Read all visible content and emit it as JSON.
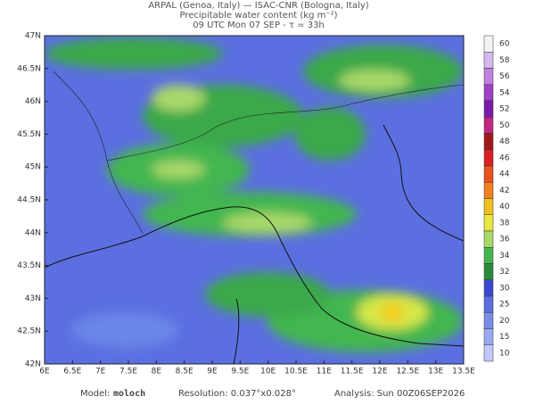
{
  "header": {
    "line1": "ARPAL (Genoa, Italy)  —  ISAC-CNR (Bologna, Italy)",
    "line2": "Precipitable water content (kg m⁻²)",
    "line3": "09 UTC Mon 07 SEP  -  τ = 33h"
  },
  "map": {
    "lat_labels": [
      "47N",
      "46.5N",
      "46N",
      "45.5N",
      "45N",
      "44.5N",
      "44N",
      "43.5N",
      "43N",
      "42.5N",
      "42N"
    ],
    "lon_labels": [
      "6E",
      "6.5E",
      "7E",
      "7.5E",
      "8E",
      "8.5E",
      "9E",
      "9.5E",
      "10E",
      "10.5E",
      "11E",
      "11.5E",
      "12E",
      "12.5E",
      "13E",
      "13.5E"
    ]
  },
  "colorbar": {
    "labels": [
      "60",
      "58",
      "56",
      "54",
      "52",
      "50",
      "48",
      "46",
      "44",
      "42",
      "40",
      "38",
      "36",
      "34",
      "32",
      "30",
      "25",
      "20",
      "15",
      "10"
    ]
  },
  "footer": {
    "model_label": "Model:",
    "model": "moloch",
    "resolution": "Resolution: 0.037°x0.028°",
    "analysis": "Analysis: Sun 00Z06SEP2026"
  }
}
